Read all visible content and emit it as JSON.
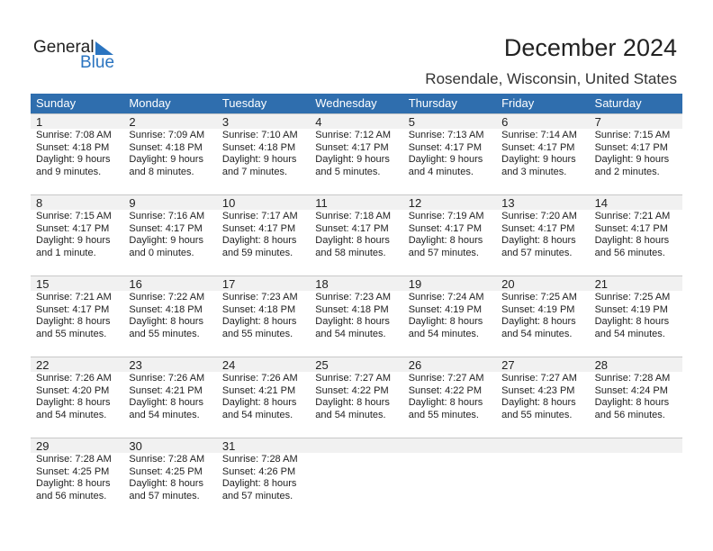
{
  "logo": {
    "text1": "General",
    "text2": "Blue"
  },
  "title": "December 2024",
  "location": "Rosendale, Wisconsin, United States",
  "colors": {
    "header": "#2f6eae",
    "brand": "#2a74c0",
    "band": "#f1f1f1"
  },
  "weekdays": [
    "Sunday",
    "Monday",
    "Tuesday",
    "Wednesday",
    "Thursday",
    "Friday",
    "Saturday"
  ],
  "weeks": [
    [
      {
        "day": "1",
        "sunrise": "Sunrise: 7:08 AM",
        "sunset": "Sunset: 4:18 PM",
        "daylight": "Daylight: 9 hours",
        "minutes": "and 9 minutes."
      },
      {
        "day": "2",
        "sunrise": "Sunrise: 7:09 AM",
        "sunset": "Sunset: 4:18 PM",
        "daylight": "Daylight: 9 hours",
        "minutes": "and 8 minutes."
      },
      {
        "day": "3",
        "sunrise": "Sunrise: 7:10 AM",
        "sunset": "Sunset: 4:18 PM",
        "daylight": "Daylight: 9 hours",
        "minutes": "and 7 minutes."
      },
      {
        "day": "4",
        "sunrise": "Sunrise: 7:12 AM",
        "sunset": "Sunset: 4:17 PM",
        "daylight": "Daylight: 9 hours",
        "minutes": "and 5 minutes."
      },
      {
        "day": "5",
        "sunrise": "Sunrise: 7:13 AM",
        "sunset": "Sunset: 4:17 PM",
        "daylight": "Daylight: 9 hours",
        "minutes": "and 4 minutes."
      },
      {
        "day": "6",
        "sunrise": "Sunrise: 7:14 AM",
        "sunset": "Sunset: 4:17 PM",
        "daylight": "Daylight: 9 hours",
        "minutes": "and 3 minutes."
      },
      {
        "day": "7",
        "sunrise": "Sunrise: 7:15 AM",
        "sunset": "Sunset: 4:17 PM",
        "daylight": "Daylight: 9 hours",
        "minutes": "and 2 minutes."
      }
    ],
    [
      {
        "day": "8",
        "sunrise": "Sunrise: 7:15 AM",
        "sunset": "Sunset: 4:17 PM",
        "daylight": "Daylight: 9 hours",
        "minutes": "and 1 minute."
      },
      {
        "day": "9",
        "sunrise": "Sunrise: 7:16 AM",
        "sunset": "Sunset: 4:17 PM",
        "daylight": "Daylight: 9 hours",
        "minutes": "and 0 minutes."
      },
      {
        "day": "10",
        "sunrise": "Sunrise: 7:17 AM",
        "sunset": "Sunset: 4:17 PM",
        "daylight": "Daylight: 8 hours",
        "minutes": "and 59 minutes."
      },
      {
        "day": "11",
        "sunrise": "Sunrise: 7:18 AM",
        "sunset": "Sunset: 4:17 PM",
        "daylight": "Daylight: 8 hours",
        "minutes": "and 58 minutes."
      },
      {
        "day": "12",
        "sunrise": "Sunrise: 7:19 AM",
        "sunset": "Sunset: 4:17 PM",
        "daylight": "Daylight: 8 hours",
        "minutes": "and 57 minutes."
      },
      {
        "day": "13",
        "sunrise": "Sunrise: 7:20 AM",
        "sunset": "Sunset: 4:17 PM",
        "daylight": "Daylight: 8 hours",
        "minutes": "and 57 minutes."
      },
      {
        "day": "14",
        "sunrise": "Sunrise: 7:21 AM",
        "sunset": "Sunset: 4:17 PM",
        "daylight": "Daylight: 8 hours",
        "minutes": "and 56 minutes."
      }
    ],
    [
      {
        "day": "15",
        "sunrise": "Sunrise: 7:21 AM",
        "sunset": "Sunset: 4:17 PM",
        "daylight": "Daylight: 8 hours",
        "minutes": "and 55 minutes."
      },
      {
        "day": "16",
        "sunrise": "Sunrise: 7:22 AM",
        "sunset": "Sunset: 4:18 PM",
        "daylight": "Daylight: 8 hours",
        "minutes": "and 55 minutes."
      },
      {
        "day": "17",
        "sunrise": "Sunrise: 7:23 AM",
        "sunset": "Sunset: 4:18 PM",
        "daylight": "Daylight: 8 hours",
        "minutes": "and 55 minutes."
      },
      {
        "day": "18",
        "sunrise": "Sunrise: 7:23 AM",
        "sunset": "Sunset: 4:18 PM",
        "daylight": "Daylight: 8 hours",
        "minutes": "and 54 minutes."
      },
      {
        "day": "19",
        "sunrise": "Sunrise: 7:24 AM",
        "sunset": "Sunset: 4:19 PM",
        "daylight": "Daylight: 8 hours",
        "minutes": "and 54 minutes."
      },
      {
        "day": "20",
        "sunrise": "Sunrise: 7:25 AM",
        "sunset": "Sunset: 4:19 PM",
        "daylight": "Daylight: 8 hours",
        "minutes": "and 54 minutes."
      },
      {
        "day": "21",
        "sunrise": "Sunrise: 7:25 AM",
        "sunset": "Sunset: 4:19 PM",
        "daylight": "Daylight: 8 hours",
        "minutes": "and 54 minutes."
      }
    ],
    [
      {
        "day": "22",
        "sunrise": "Sunrise: 7:26 AM",
        "sunset": "Sunset: 4:20 PM",
        "daylight": "Daylight: 8 hours",
        "minutes": "and 54 minutes."
      },
      {
        "day": "23",
        "sunrise": "Sunrise: 7:26 AM",
        "sunset": "Sunset: 4:21 PM",
        "daylight": "Daylight: 8 hours",
        "minutes": "and 54 minutes."
      },
      {
        "day": "24",
        "sunrise": "Sunrise: 7:26 AM",
        "sunset": "Sunset: 4:21 PM",
        "daylight": "Daylight: 8 hours",
        "minutes": "and 54 minutes."
      },
      {
        "day": "25",
        "sunrise": "Sunrise: 7:27 AM",
        "sunset": "Sunset: 4:22 PM",
        "daylight": "Daylight: 8 hours",
        "minutes": "and 54 minutes."
      },
      {
        "day": "26",
        "sunrise": "Sunrise: 7:27 AM",
        "sunset": "Sunset: 4:22 PM",
        "daylight": "Daylight: 8 hours",
        "minutes": "and 55 minutes."
      },
      {
        "day": "27",
        "sunrise": "Sunrise: 7:27 AM",
        "sunset": "Sunset: 4:23 PM",
        "daylight": "Daylight: 8 hours",
        "minutes": "and 55 minutes."
      },
      {
        "day": "28",
        "sunrise": "Sunrise: 7:28 AM",
        "sunset": "Sunset: 4:24 PM",
        "daylight": "Daylight: 8 hours",
        "minutes": "and 56 minutes."
      }
    ],
    [
      {
        "day": "29",
        "sunrise": "Sunrise: 7:28 AM",
        "sunset": "Sunset: 4:25 PM",
        "daylight": "Daylight: 8 hours",
        "minutes": "and 56 minutes."
      },
      {
        "day": "30",
        "sunrise": "Sunrise: 7:28 AM",
        "sunset": "Sunset: 4:25 PM",
        "daylight": "Daylight: 8 hours",
        "minutes": "and 57 minutes."
      },
      {
        "day": "31",
        "sunrise": "Sunrise: 7:28 AM",
        "sunset": "Sunset: 4:26 PM",
        "daylight": "Daylight: 8 hours",
        "minutes": "and 57 minutes."
      }
    ]
  ]
}
